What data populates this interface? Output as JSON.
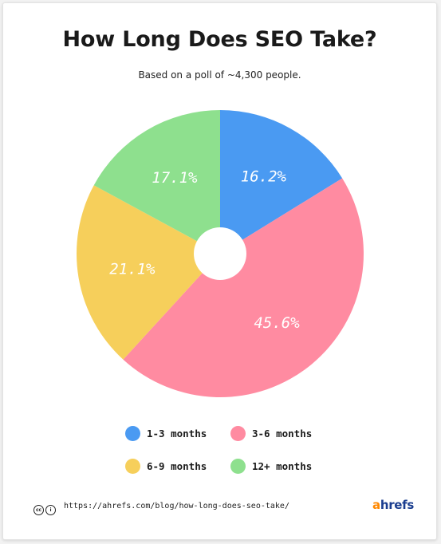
{
  "chart_data": {
    "type": "pie",
    "title": "How Long Does SEO Take?",
    "subtitle": "Based on a poll of ~4,300 people.",
    "donut_hole": true,
    "slices": [
      {
        "label": "1-3 months",
        "value": 16.2,
        "display": "16.2%",
        "color": "#4a9af2"
      },
      {
        "label": "3-6 months",
        "value": 45.6,
        "display": "45.6%",
        "color": "#ff8ba1"
      },
      {
        "label": "6-9 months",
        "value": 21.1,
        "display": "21.1%",
        "color": "#f6cf5b"
      },
      {
        "label": "12+ months",
        "value": 17.1,
        "display": "17.1%",
        "color": "#8ee08e"
      }
    ],
    "legend_position": "bottom"
  },
  "footer": {
    "cc_icon": "creative-commons-icon",
    "by_icon": "attribution-icon",
    "url": "https://ahrefs.com/blog/how-long-does-seo-take/",
    "brand_prefix": "a",
    "brand_suffix": "hrefs",
    "brand_color": "#1a3d8f",
    "brand_accent_color": "#ff8800"
  }
}
